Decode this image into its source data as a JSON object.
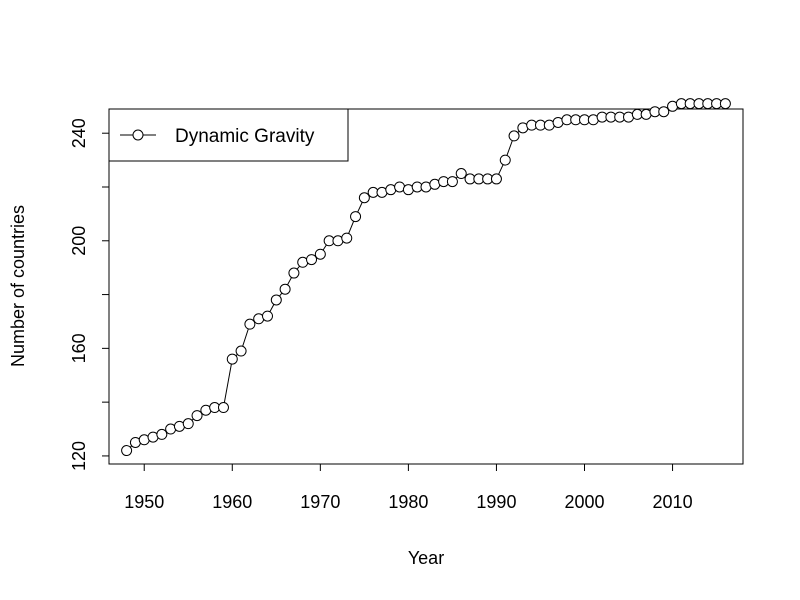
{
  "chart_data": {
    "type": "line",
    "xlabel": "Year",
    "ylabel": "Number of countries",
    "xlim": [
      1946,
      2018
    ],
    "ylim": [
      117,
      249
    ],
    "x_ticks": [
      1950,
      1960,
      1970,
      1980,
      1990,
      2000,
      2010
    ],
    "y_ticks": [
      120,
      140,
      160,
      180,
      200,
      220,
      240
    ],
    "y_tick_labels": [
      "120",
      "",
      "160",
      "",
      "200",
      "",
      "240"
    ],
    "grid": false,
    "legend_position": "top-left",
    "marker": "open-circle",
    "line_color": "#000000",
    "series": [
      {
        "name": "Dynamic Gravity",
        "x": [
          1948,
          1949,
          1950,
          1951,
          1952,
          1953,
          1954,
          1955,
          1956,
          1957,
          1958,
          1959,
          1960,
          1961,
          1962,
          1963,
          1964,
          1965,
          1966,
          1967,
          1968,
          1969,
          1970,
          1971,
          1972,
          1973,
          1974,
          1975,
          1976,
          1977,
          1978,
          1979,
          1980,
          1981,
          1982,
          1983,
          1984,
          1985,
          1986,
          1987,
          1988,
          1989,
          1990,
          1991,
          1992,
          1993,
          1994,
          1995,
          1996,
          1997,
          1998,
          1999,
          2000,
          2001,
          2002,
          2003,
          2004,
          2005,
          2006,
          2007,
          2008,
          2009,
          2010,
          2011,
          2012,
          2013,
          2014,
          2015,
          2016
        ],
        "y": [
          122,
          125,
          126,
          127,
          128,
          130,
          131,
          132,
          135,
          137,
          138,
          138,
          156,
          159,
          169,
          171,
          172,
          178,
          182,
          188,
          192,
          193,
          195,
          200,
          200,
          201,
          209,
          216,
          218,
          218,
          219,
          220,
          219,
          220,
          220,
          221,
          222,
          222,
          225,
          223,
          223,
          223,
          223,
          230,
          239,
          242,
          243,
          243,
          243,
          244,
          245,
          245,
          245,
          245,
          246,
          246,
          246,
          246,
          247,
          247,
          248,
          248,
          250,
          251,
          251,
          251,
          251,
          251,
          251
        ]
      }
    ]
  }
}
